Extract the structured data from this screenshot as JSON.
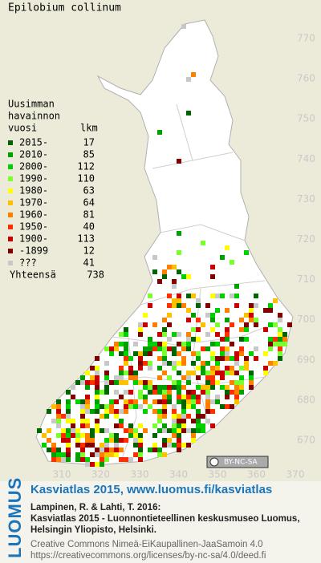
{
  "title": "Epilobium collinum",
  "legend": {
    "heading": [
      "Uusimman",
      "havainnon"
    ],
    "col_year": "vuosi",
    "col_count": "lkm",
    "rows": [
      {
        "label": "2015-",
        "count": 17,
        "color": "#006400"
      },
      {
        "label": "2010-",
        "count": 85,
        "color": "#00a000"
      },
      {
        "label": "2000-",
        "count": 112,
        "color": "#00d000"
      },
      {
        "label": "1990-",
        "count": 110,
        "color": "#7cff30"
      },
      {
        "label": "1980-",
        "count": 63,
        "color": "#ffff00"
      },
      {
        "label": "1970-",
        "count": 64,
        "color": "#ffc000"
      },
      {
        "label": "1960-",
        "count": 81,
        "color": "#ff8000"
      },
      {
        "label": "1950-",
        "count": 40,
        "color": "#ff3000"
      },
      {
        "label": "1900-",
        "count": 113,
        "color": "#c80000"
      },
      {
        "label": "-1899",
        "count": 12,
        "color": "#800000"
      },
      {
        "label": "???",
        "count": 41,
        "color": "#c8c8c8"
      }
    ],
    "total_label": "Yhteensä",
    "total": 738
  },
  "grid_north": [
    770,
    760,
    750,
    740,
    730,
    720,
    710,
    700,
    690,
    680,
    670
  ],
  "grid_east": [
    310,
    320,
    330,
    340,
    350,
    360,
    370
  ],
  "license_badge": "BY-NC-SA",
  "footer": {
    "logo": "LUOMUS",
    "headline": "Kasviatlas 2015, www.luomus.fi/kasviatlas",
    "citation": [
      "Lampinen, R. & Lahti, T. 2016:",
      "Kasviatlas 2015 - Luonnontieteellinen keskusmuseo Luomus,",
      "Helsingin Yliopisto, Helsinki."
    ],
    "license": [
      "Creative Commons Nimeä-EiKaupallinen-JaaSamoin 4.0",
      "https://creativecommons.org/licenses/by-nc-sa/4.0/deed.fi"
    ]
  }
}
